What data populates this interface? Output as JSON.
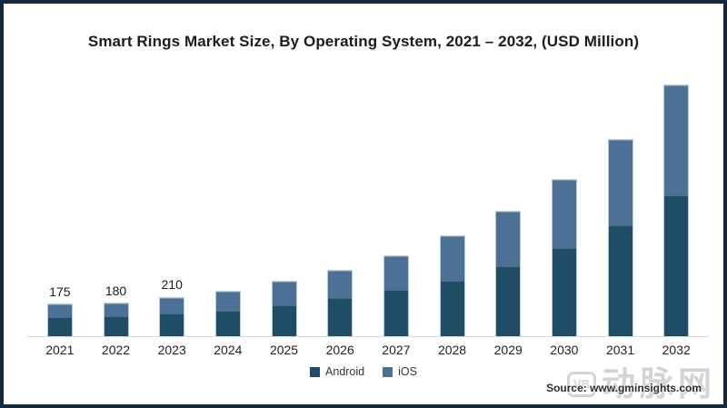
{
  "chart_data": {
    "type": "bar",
    "stacked": true,
    "title": "Smart Rings Market Size, By Operating System, 2021 – 2032, (USD Million)",
    "categories": [
      "2021",
      "2022",
      "2023",
      "2024",
      "2025",
      "2026",
      "2027",
      "2028",
      "2029",
      "2030",
      "2031",
      "2032"
    ],
    "series": [
      {
        "name": "Android",
        "color": "#204d66",
        "values": [
          105,
          110,
          125,
          140,
          170,
          210,
          255,
          300,
          380,
          475,
          600,
          760
        ]
      },
      {
        "name": "iOS",
        "color": "#4d7196",
        "values": [
          70,
          70,
          85,
          105,
          125,
          145,
          180,
          240,
          290,
          365,
          455,
          585
        ]
      }
    ],
    "totals": [
      175,
      180,
      210,
      245,
      295,
      355,
      435,
      540,
      670,
      840,
      1055,
      1345
    ],
    "visible_value_labels": [
      "175",
      "180",
      "210",
      "",
      "",
      "",
      "",
      "",
      "",
      "",
      "",
      ""
    ],
    "xlabel": "",
    "ylabel": "",
    "ylim": [
      0,
      1400
    ],
    "grid": false,
    "legend_position": "bottom"
  },
  "source": {
    "text": "Source: www.gminsights.com"
  },
  "watermark": {
    "logo_text": "VB",
    "text": "动脉网"
  },
  "colors": {
    "frame_border": "#13293f",
    "axis_line": "#d9d9d9",
    "bar_outline": "#b6cde0",
    "watermark_gray": "#d2d2d2"
  }
}
